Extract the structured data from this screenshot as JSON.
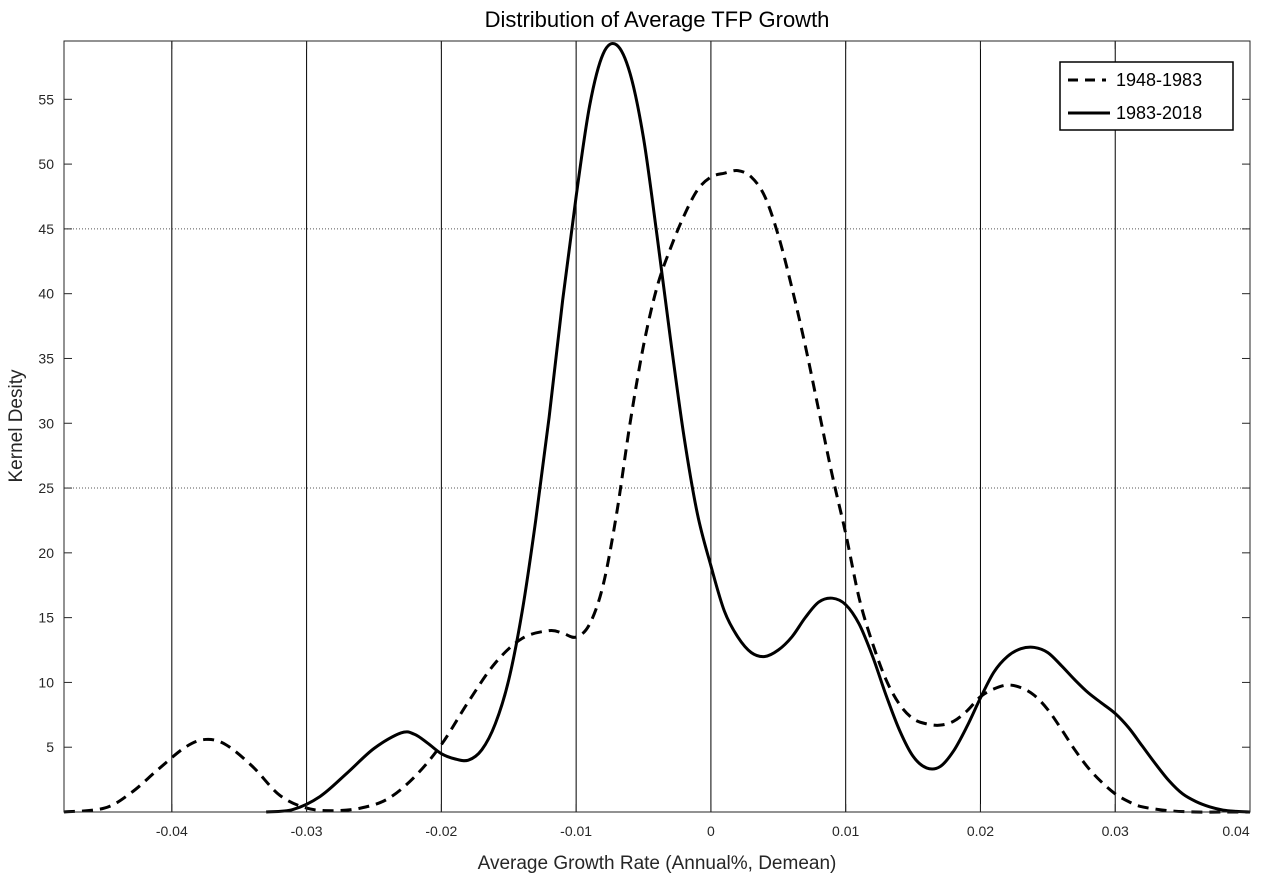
{
  "chart_data": {
    "type": "line",
    "title": "Distribution of Average TFP Growth",
    "xlabel": "Average Growth Rate (Annual%, Demean)",
    "ylabel": "Kernel Desity",
    "xlim": [
      -0.048,
      0.04
    ],
    "ylim": [
      0,
      59.5
    ],
    "x_ticks": [
      -0.04,
      -0.03,
      -0.02,
      -0.01,
      0,
      0.01,
      0.02,
      0.03,
      0.04
    ],
    "x_tick_labels": [
      "-0.04",
      "-0.03",
      "-0.02",
      "-0.01",
      "0",
      "0.01",
      "0.02",
      "0.03",
      "0.04"
    ],
    "y_ticks": [
      5,
      10,
      15,
      20,
      25,
      30,
      35,
      40,
      45,
      50,
      55
    ],
    "y_tick_labels": [
      "5",
      "10",
      "15",
      "20",
      "25",
      "30",
      "35",
      "40",
      "45",
      "50",
      "55"
    ],
    "grid": "vertical lines at x ticks, dotted horizontal lines at y = 25 and 45",
    "legend_position": "top-right",
    "series": [
      {
        "name": "1948-1983",
        "style": "dashed",
        "color": "#000000",
        "x": [
          -0.048,
          -0.045,
          -0.043,
          -0.041,
          -0.039,
          -0.0375,
          -0.036,
          -0.034,
          -0.032,
          -0.03,
          -0.028,
          -0.026,
          -0.024,
          -0.022,
          -0.02,
          -0.018,
          -0.016,
          -0.014,
          -0.012,
          -0.011,
          -0.01,
          -0.009,
          -0.008,
          -0.007,
          -0.006,
          -0.005,
          -0.004,
          -0.003,
          -0.002,
          -0.001,
          0.0,
          0.001,
          0.002,
          0.003,
          0.004,
          0.005,
          0.006,
          0.007,
          0.008,
          0.009,
          0.01,
          0.011,
          0.012,
          0.013,
          0.014,
          0.015,
          0.016,
          0.017,
          0.018,
          0.019,
          0.02,
          0.021,
          0.022,
          0.023,
          0.024,
          0.025,
          0.026,
          0.027,
          0.028,
          0.029,
          0.03,
          0.031,
          0.032,
          0.034,
          0.036,
          0.038,
          0.04
        ],
        "values": [
          0,
          0.3,
          1.5,
          3.3,
          5.0,
          5.6,
          5.2,
          3.5,
          1.3,
          0.3,
          0.1,
          0.3,
          1.0,
          2.7,
          5.2,
          8.5,
          11.5,
          13.4,
          14.0,
          13.8,
          13.5,
          14.5,
          17.5,
          23,
          30,
          36,
          40.5,
          43.5,
          46,
          48,
          49,
          49.3,
          49.5,
          49,
          47.5,
          44.5,
          40.5,
          36,
          31,
          26,
          21.5,
          16.5,
          13,
          10.2,
          8.3,
          7.2,
          6.8,
          6.7,
          7.0,
          7.8,
          8.9,
          9.5,
          9.8,
          9.6,
          9.0,
          7.9,
          6.4,
          4.8,
          3.4,
          2.3,
          1.4,
          0.8,
          0.4,
          0.1,
          0,
          0,
          0
        ]
      },
      {
        "name": "1983-2018",
        "style": "solid",
        "color": "#000000",
        "x": [
          -0.033,
          -0.031,
          -0.029,
          -0.027,
          -0.025,
          -0.023,
          -0.022,
          -0.021,
          -0.02,
          -0.019,
          -0.018,
          -0.017,
          -0.016,
          -0.015,
          -0.014,
          -0.013,
          -0.012,
          -0.011,
          -0.01,
          -0.009,
          -0.008,
          -0.007,
          -0.006,
          -0.005,
          -0.004,
          -0.003,
          -0.002,
          -0.001,
          0.0,
          0.001,
          0.002,
          0.003,
          0.004,
          0.005,
          0.006,
          0.007,
          0.008,
          0.009,
          0.01,
          0.011,
          0.012,
          0.013,
          0.014,
          0.015,
          0.016,
          0.017,
          0.018,
          0.019,
          0.02,
          0.021,
          0.022,
          0.023,
          0.024,
          0.025,
          0.026,
          0.027,
          0.028,
          0.029,
          0.03,
          0.031,
          0.032,
          0.033,
          0.034,
          0.035,
          0.036,
          0.037,
          0.038,
          0.039,
          0.04
        ],
        "values": [
          0,
          0.2,
          1.2,
          3.0,
          4.9,
          6.1,
          6.0,
          5.3,
          4.5,
          4.1,
          4.0,
          4.8,
          6.8,
          10.2,
          15.5,
          22.5,
          30.5,
          39.5,
          47.5,
          54.5,
          58.5,
          59.2,
          57.0,
          52.0,
          44.5,
          36.5,
          29.0,
          23.0,
          19.0,
          15.5,
          13.5,
          12.3,
          12.0,
          12.5,
          13.5,
          15.0,
          16.2,
          16.5,
          16.0,
          14.5,
          12.0,
          9.0,
          6.3,
          4.3,
          3.4,
          3.5,
          4.7,
          6.6,
          8.8,
          10.8,
          12.0,
          12.6,
          12.7,
          12.3,
          11.3,
          10.2,
          9.2,
          8.4,
          7.6,
          6.5,
          5.1,
          3.7,
          2.4,
          1.4,
          0.8,
          0.4,
          0.15,
          0.05,
          0
        ]
      }
    ]
  }
}
